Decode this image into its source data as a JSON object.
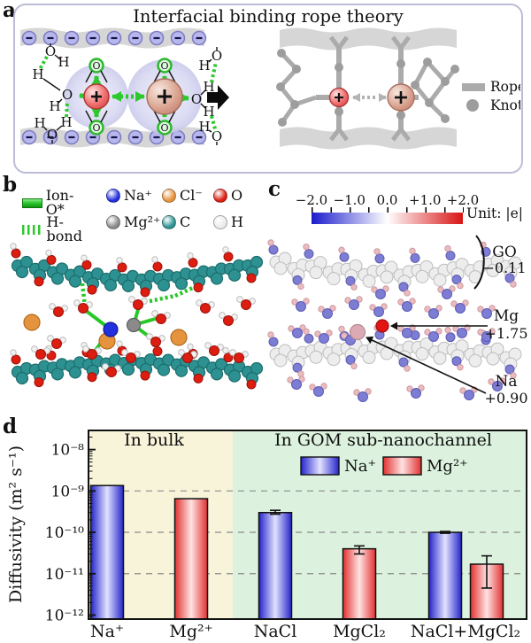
{
  "panel_a": {
    "label": "a",
    "title": "Interfacial binding rope theory",
    "symbols": {
      "cation": "+",
      "anion_charge": "−",
      "oxygen": "O",
      "hydrogen": "H"
    },
    "legend": {
      "rope": "Rope",
      "knot": "Knot"
    },
    "colors": {
      "membrane": "#d6d6d6",
      "surface_ion": "#b7b7ee",
      "hydration_shell": "#d5d5f1",
      "bond_green": "#2dc82d",
      "small_cation": "#f17070",
      "large_cation": "#d9a28f",
      "rope_gray": "#ababab",
      "knot_gray": "#9d9d9d"
    }
  },
  "panel_b": {
    "label": "b",
    "legend": [
      {
        "type": "bar",
        "label": "Ion-O*",
        "color": "#2dc82d"
      },
      {
        "type": "sphere",
        "label": "Na⁺",
        "color": "#2330dd"
      },
      {
        "type": "sphere",
        "label": "Cl⁻",
        "color": "#e6933e"
      },
      {
        "type": "sphere",
        "label": "O",
        "color": "#dd1d10"
      },
      {
        "type": "spring",
        "label": "H-bond",
        "color": "#2dc82d"
      },
      {
        "type": "sphere",
        "label": "Mg²⁺",
        "color": "#8a8a8a"
      },
      {
        "type": "sphere",
        "label": "C",
        "color": "#2d9191"
      },
      {
        "type": "sphere",
        "label": "H",
        "color": "#ebebeb"
      }
    ]
  },
  "panel_c": {
    "label": "c",
    "colorbar": {
      "tick_labels": [
        "−2.0",
        "−1.0",
        "0.0",
        "+1.0",
        "+2.0"
      ],
      "unit": "Unit: |e|",
      "negative_color": "#1a1acc",
      "positive_color": "#d81414"
    },
    "annotations": [
      {
        "name": "GO",
        "value": "−0.11"
      },
      {
        "name": "Mg",
        "value": "+1.75"
      },
      {
        "name": "Na",
        "value": "+0.90"
      }
    ]
  },
  "panel_d": {
    "label": "d"
  },
  "chart_data": {
    "type": "bar",
    "title": "",
    "ylabel": "Diffusivity (m² s⁻¹)",
    "yscale": "log",
    "ylim": [
      8e-13,
      2.9e-08
    ],
    "yticks": [
      1e-08,
      1e-09,
      1e-10,
      1e-11,
      1e-12
    ],
    "ytick_labels": [
      "10⁻⁸",
      "10⁻⁹",
      "10⁻¹⁰",
      "10⁻¹¹",
      "10⁻¹²"
    ],
    "gridlines": [
      1e-09,
      1e-10,
      1e-11
    ],
    "grid": true,
    "legend_position": "inside-top-right-region",
    "categories": [
      "Na⁺",
      "Mg²⁺",
      "NaCl",
      "MgCl₂",
      "NaCl+MgCl₂"
    ],
    "regions": [
      {
        "label": "In bulk",
        "categories": [
          "Na⁺",
          "Mg²⁺"
        ],
        "bg_color": "#f7f4da"
      },
      {
        "label": "In GOM sub-nanochannel",
        "categories": [
          "NaCl",
          "MgCl₂",
          "NaCl+MgCl₂"
        ],
        "bg_color": "#dcf2de"
      }
    ],
    "series": [
      {
        "name": "Na⁺",
        "edge_color": "#2424cc",
        "center_color": "#e2e2ff",
        "points": [
          {
            "category": "Na⁺",
            "value": 1.35e-09
          },
          {
            "category": "NaCl",
            "value": 3e-10,
            "error_low": 2.75e-10,
            "error_high": 3.4e-10
          },
          {
            "category": "NaCl+MgCl₂",
            "value": 1e-10,
            "error_low": 9.5e-11,
            "error_high": 1.05e-10
          }
        ]
      },
      {
        "name": "Mg²⁺",
        "edge_color": "#e23030",
        "center_color": "#ffe3e3",
        "points": [
          {
            "category": "Mg²⁺",
            "value": 6.5e-10
          },
          {
            "category": "MgCl₂",
            "value": 4e-11,
            "error_low": 3e-11,
            "error_high": 4.7e-11
          },
          {
            "category": "NaCl+MgCl₂",
            "value": 1.7e-11,
            "error_low": 4.5e-12,
            "error_high": 2.7e-11
          }
        ]
      }
    ]
  }
}
